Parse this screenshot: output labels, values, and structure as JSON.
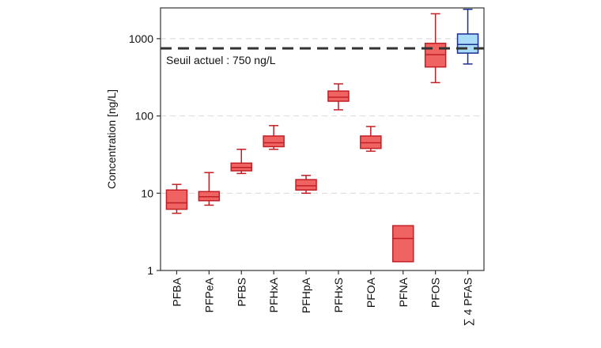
{
  "chart_data": {
    "type": "box",
    "title": "",
    "xlabel": "",
    "ylabel": "Concentration [ng/L]",
    "y_scale": "log",
    "ylim": [
      1,
      2500
    ],
    "y_ticks": [
      1,
      10,
      100,
      1000
    ],
    "y_tick_labels": [
      "1",
      "10",
      "100",
      "1000"
    ],
    "grid": "horizontal dashed",
    "categories": [
      "PFBA",
      "PFPeA",
      "PFBS",
      "PFHxA",
      "PFHpA",
      "PFHxS",
      "PFOA",
      "PFNA",
      "PFOS",
      "∑ 4 PFAS"
    ],
    "boxes": [
      {
        "min": 5.5,
        "q1": 6.2,
        "median": 7.5,
        "q3": 11,
        "max": 13
      },
      {
        "min": 7,
        "q1": 8,
        "median": 9,
        "q3": 10.5,
        "max": 18.5
      },
      {
        "min": 18,
        "q1": 19.5,
        "median": 21.5,
        "q3": 24.5,
        "max": 37
      },
      {
        "min": 37,
        "q1": 40,
        "median": 45,
        "q3": 55,
        "max": 75
      },
      {
        "min": 10,
        "q1": 11,
        "median": 12.5,
        "q3": 15,
        "max": 17
      },
      {
        "min": 120,
        "q1": 155,
        "median": 175,
        "q3": 210,
        "max": 260
      },
      {
        "min": 35,
        "q1": 38,
        "median": 45,
        "q3": 55,
        "max": 73
      },
      {
        "min": null,
        "q1": 1.3,
        "median": 2.6,
        "q3": 3.8,
        "max": null
      },
      {
        "min": 270,
        "q1": 430,
        "median": 620,
        "q3": 870,
        "max": 2100
      },
      {
        "min": 470,
        "q1": 650,
        "median": 840,
        "q3": 1150,
        "max": 2400
      }
    ],
    "box_colors": {
      "fill": [
        "#ef6363",
        "#ef6363",
        "#ef6363",
        "#ef6363",
        "#ef6363",
        "#ef6363",
        "#ef6363",
        "#ef6363",
        "#ef6363",
        "#a9dcf8"
      ],
      "stroke": [
        "#c11f24",
        "#c11f24",
        "#c11f24",
        "#c11f24",
        "#c11f24",
        "#c11f24",
        "#c11f24",
        "#c11f24",
        "#c11f24",
        "#1a2f8f"
      ]
    },
    "threshold": {
      "value": 750,
      "label": "Seuil actuel : 750 ng/L",
      "color": "#333333"
    }
  }
}
